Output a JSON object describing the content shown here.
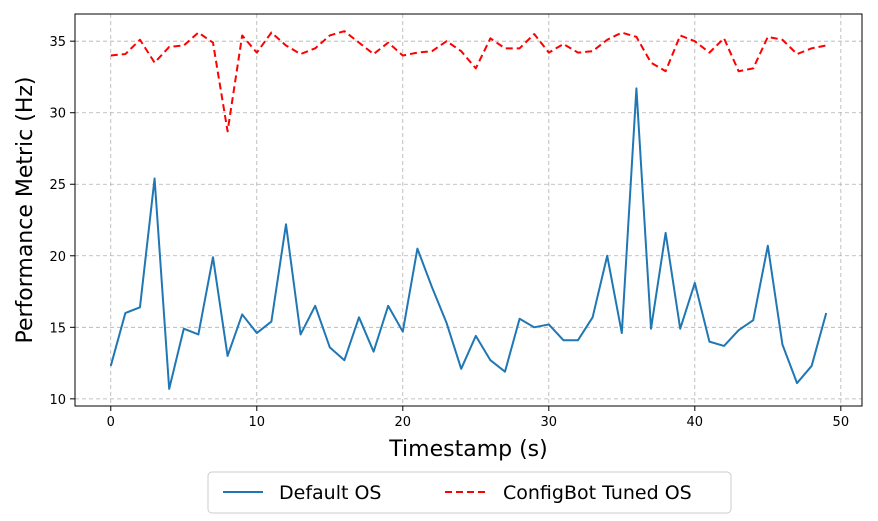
{
  "chart_data": {
    "type": "line",
    "title": "",
    "xlabel": "Timestamp (s)",
    "ylabel": "Performance Metric (Hz)",
    "xlim": [
      -2.45,
      51.45
    ],
    "ylim": [
      9.5,
      36.9
    ],
    "xticks": [
      0,
      10,
      20,
      30,
      40,
      50
    ],
    "yticks": [
      10,
      15,
      20,
      25,
      30,
      35
    ],
    "grid": true,
    "legend_placement": "bottom-center",
    "x": [
      0,
      1,
      2,
      3,
      4,
      5,
      6,
      7,
      8,
      9,
      10,
      11,
      12,
      13,
      14,
      15,
      16,
      17,
      18,
      19,
      20,
      21,
      22,
      23,
      24,
      25,
      26,
      27,
      28,
      29,
      30,
      31,
      32,
      33,
      34,
      35,
      36,
      37,
      38,
      39,
      40,
      41,
      42,
      43,
      44,
      45,
      46,
      47,
      48,
      49
    ],
    "series": [
      {
        "name": "Default OS",
        "color": "#1f77b4",
        "style": "solid",
        "values": [
          12.3,
          16.0,
          16.4,
          25.4,
          10.7,
          14.9,
          14.5,
          19.9,
          13.0,
          15.9,
          14.6,
          15.4,
          22.2,
          14.5,
          16.5,
          13.6,
          12.7,
          15.7,
          13.3,
          16.5,
          14.7,
          20.5,
          17.8,
          15.3,
          12.1,
          14.4,
          12.7,
          11.9,
          15.6,
          15.0,
          15.2,
          14.1,
          14.1,
          15.7,
          20.0,
          14.6,
          31.7,
          14.9,
          21.6,
          14.9,
          18.1,
          14.0,
          13.7,
          14.8,
          15.5,
          20.7,
          13.8,
          11.1,
          12.3,
          16.0
        ]
      },
      {
        "name": "ConfigBot Tuned OS",
        "color": "#ff0000",
        "style": "dashed",
        "values": [
          34.0,
          34.1,
          35.1,
          33.5,
          34.6,
          34.7,
          35.6,
          34.9,
          28.7,
          35.4,
          34.2,
          35.6,
          34.7,
          34.1,
          34.5,
          35.4,
          35.7,
          34.9,
          34.1,
          34.9,
          34.0,
          34.2,
          34.3,
          35.0,
          34.3,
          33.1,
          35.2,
          34.5,
          34.5,
          35.5,
          34.2,
          34.8,
          34.2,
          34.3,
          35.1,
          35.6,
          35.3,
          33.5,
          32.9,
          35.4,
          35.0,
          34.2,
          35.2,
          32.9,
          33.1,
          35.3,
          35.1,
          34.1,
          34.5,
          34.7
        ]
      }
    ]
  }
}
